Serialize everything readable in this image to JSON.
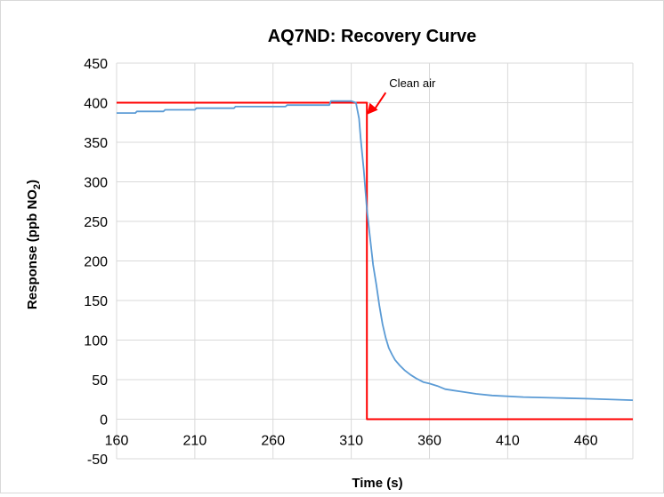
{
  "chart_data": {
    "type": "line",
    "title": "AQ7ND: Recovery Curve",
    "xlabel": "Time (s)",
    "ylabel_main": "Response (ppb NO",
    "ylabel_sub": "2",
    "ylabel_tail": ")",
    "xlim": [
      160,
      490
    ],
    "ylim": [
      -50,
      450
    ],
    "x_ticks": [
      160,
      210,
      260,
      310,
      360,
      410,
      460
    ],
    "y_ticks": [
      -50,
      0,
      50,
      100,
      150,
      200,
      250,
      300,
      350,
      400,
      450
    ],
    "grid": true,
    "legend": "none",
    "series": [
      {
        "color": "#ff0000",
        "x": [
          160,
          320,
          320,
          490
        ],
        "y": [
          400,
          400,
          0,
          0
        ]
      },
      {
        "color": "#5b9bd5",
        "x": [
          160,
          172,
          173,
          190,
          191,
          210,
          211,
          235,
          236,
          268,
          269,
          296,
          297,
          310,
          313,
          315,
          316,
          318,
          320,
          322,
          324,
          326,
          328,
          330,
          332,
          334,
          336,
          338,
          341,
          344,
          348,
          352,
          356,
          360,
          365,
          370,
          380,
          390,
          400,
          420,
          440,
          460,
          490
        ],
        "y": [
          387,
          387,
          389,
          389,
          391,
          391,
          393,
          393,
          395,
          395,
          397,
          397,
          402,
          402,
          400,
          380,
          355,
          315,
          265,
          230,
          195,
          170,
          143,
          120,
          103,
          90,
          82,
          75,
          68,
          62,
          56,
          51,
          47,
          45,
          42,
          38,
          35,
          32,
          30,
          28,
          27,
          26,
          24
        ]
      }
    ],
    "annotations": [
      {
        "text": "Clean air",
        "point_x": 320,
        "point_y": 385,
        "text_x": 332,
        "text_y": 415
      }
    ]
  }
}
